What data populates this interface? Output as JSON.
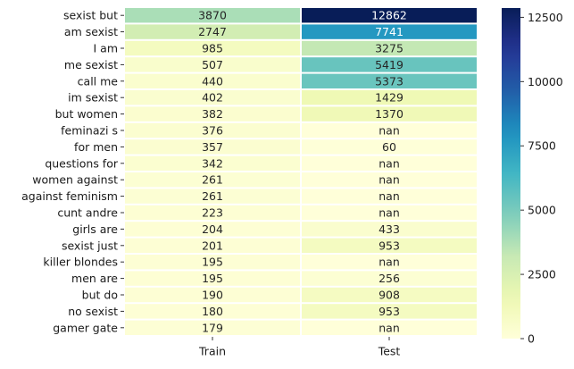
{
  "chart_data": {
    "type": "heatmap",
    "title": "",
    "xlabel": "",
    "ylabel": "",
    "columns": [
      "Train",
      "Test"
    ],
    "rows": [
      "sexist but",
      "am sexist",
      "I am",
      "me sexist",
      "call me",
      "im sexist",
      "but women",
      "feminazi s",
      "for men",
      "questions for",
      "women against",
      "against feminism",
      "cunt andre",
      "girls are",
      "sexist just",
      "killer blondes",
      "men are",
      "but do",
      "no sexist",
      "gamer gate"
    ],
    "values": [
      [
        3870,
        12862
      ],
      [
        2747,
        7741
      ],
      [
        985,
        3275
      ],
      [
        507,
        5419
      ],
      [
        440,
        5373
      ],
      [
        402,
        1429
      ],
      [
        382,
        1370
      ],
      [
        376,
        null
      ],
      [
        357,
        60
      ],
      [
        342,
        null
      ],
      [
        261,
        null
      ],
      [
        261,
        null
      ],
      [
        223,
        null
      ],
      [
        204,
        433
      ],
      [
        201,
        953
      ],
      [
        195,
        null
      ],
      [
        195,
        256
      ],
      [
        190,
        908
      ],
      [
        180,
        953
      ],
      [
        179,
        null
      ]
    ],
    "missing_label": "nan",
    "colormap": "YlGnBu",
    "colorbar": {
      "range": [
        0,
        12862
      ],
      "ticks": [
        0,
        2500,
        5000,
        7500,
        10000,
        12500
      ]
    }
  }
}
